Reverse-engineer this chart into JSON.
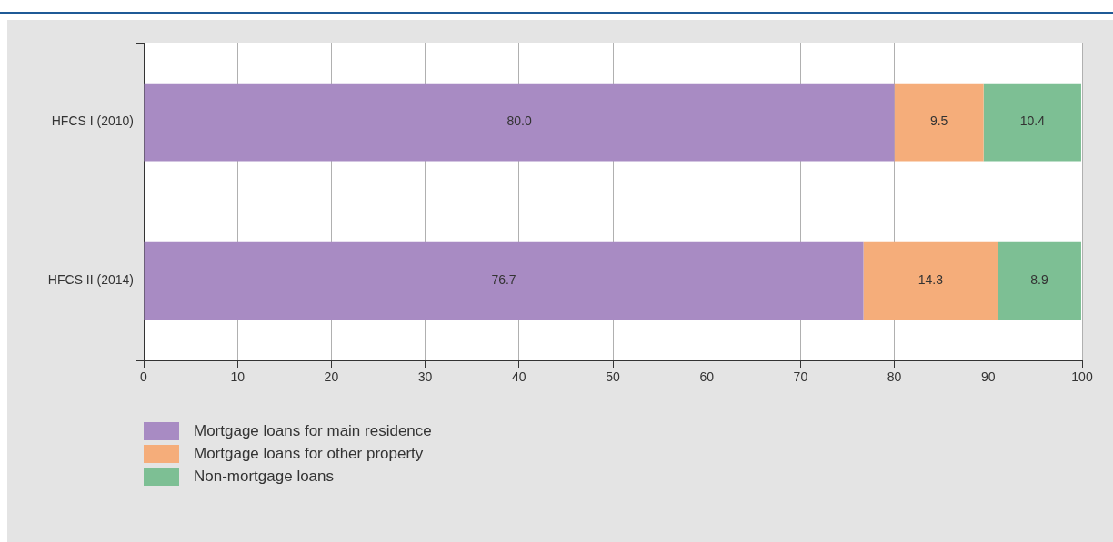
{
  "chart_data": {
    "type": "bar",
    "orientation": "horizontal",
    "stacked": true,
    "categories": [
      "HFCS I (2010)",
      "HFCS II (2014)"
    ],
    "series": [
      {
        "name": "Mortgage loans for main residence",
        "color": "#a88bc3",
        "values": [
          80.0,
          76.7
        ],
        "value_labels": [
          "80.0",
          "76.7"
        ]
      },
      {
        "name": "Mortgage loans for other property",
        "color": "#f5ad7a",
        "values": [
          9.5,
          14.3
        ],
        "value_labels": [
          "9.5",
          "14.3"
        ]
      },
      {
        "name": "Non-mortgage loans",
        "color": "#7dbf94",
        "values": [
          10.4,
          8.9
        ],
        "value_labels": [
          "10.4",
          "8.9"
        ]
      }
    ],
    "xlim": [
      0,
      100
    ],
    "xticks": [
      0,
      10,
      20,
      30,
      40,
      50,
      60,
      70,
      80,
      90,
      100
    ],
    "grid": "x",
    "legend": "bottom left"
  }
}
